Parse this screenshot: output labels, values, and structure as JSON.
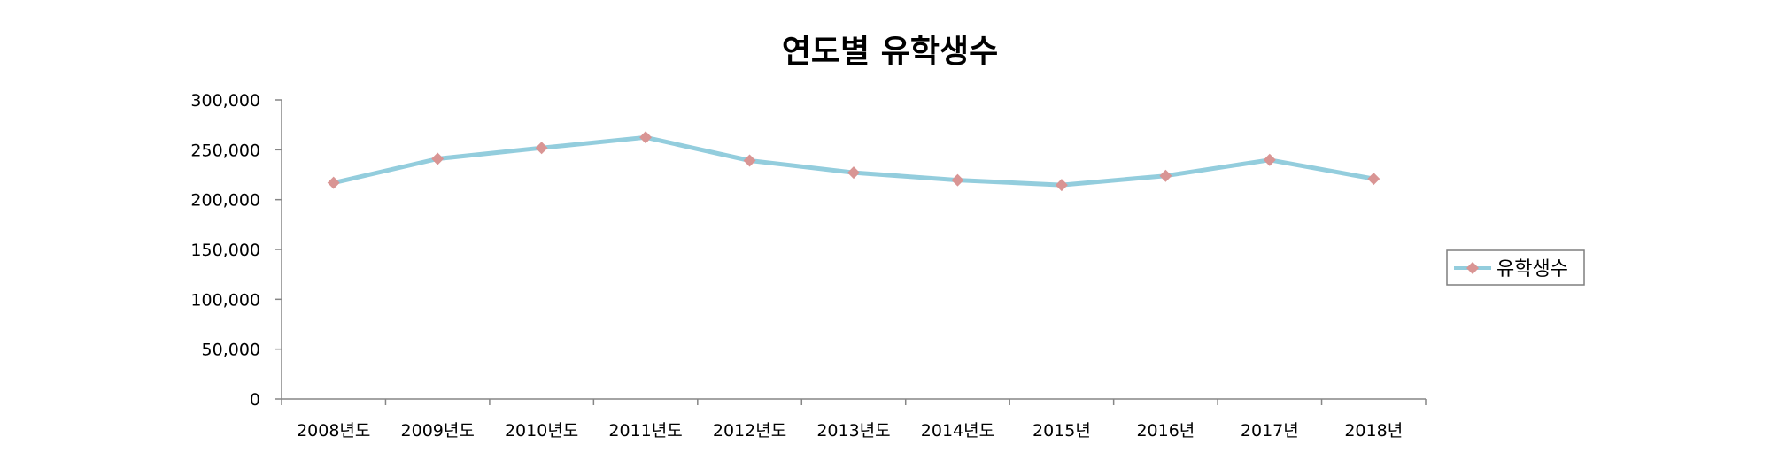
{
  "chart_data": {
    "type": "line",
    "title": "연도별 유학생수",
    "categories": [
      "2008년도",
      "2009년도",
      "2010년도",
      "2011년도",
      "2012년도",
      "2013년도",
      "2014년도",
      "2015년",
      "2016년",
      "2017년",
      "2018년"
    ],
    "series": [
      {
        "name": "유학생수",
        "values": [
          216867,
          240949,
          251887,
          262465,
          239213,
          227126,
          219543,
          214696,
          223908,
          239824,
          220930
        ],
        "line_color": "#93CDDD",
        "marker_color": "#D99594",
        "marker": "diamond"
      }
    ],
    "ylim": [
      0,
      300000
    ],
    "yticks": [
      0,
      50000,
      100000,
      150000,
      200000,
      250000,
      300000
    ],
    "ytick_labels": [
      "0",
      "50,000",
      "100,000",
      "150,000",
      "200,000",
      "250,000",
      "300,000"
    ],
    "grid": false,
    "legend": {
      "position": "right",
      "label": "유학생수"
    }
  }
}
